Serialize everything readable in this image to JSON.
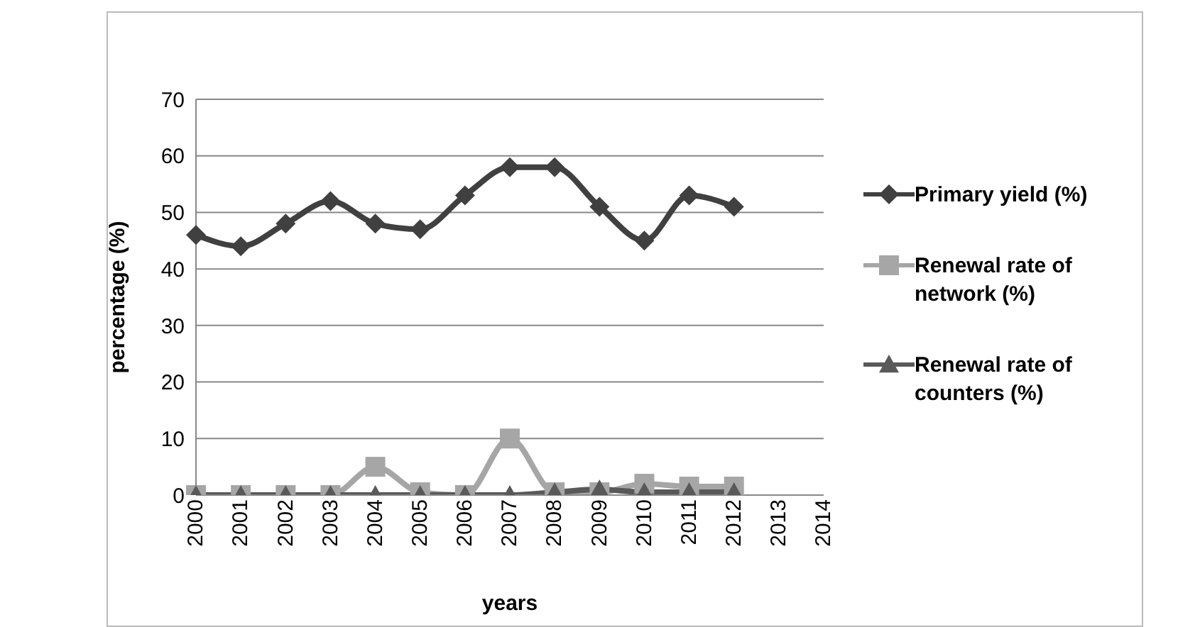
{
  "chart_data": {
    "type": "line",
    "xlabel": "years",
    "ylabel": "percentage (%)",
    "categories": [
      "2000",
      "2001",
      "2002",
      "2003",
      "2004",
      "2005",
      "2006",
      "2007",
      "2008",
      "2009",
      "2010",
      "2011",
      "2012",
      "2013",
      "2014"
    ],
    "series": [
      {
        "name": "Primary yield (%)",
        "color": "#404040",
        "marker": "diamond",
        "values": [
          46,
          44,
          48,
          52,
          48,
          47,
          53,
          58,
          58,
          51,
          45,
          53,
          51,
          null,
          null
        ]
      },
      {
        "name": "Renewal rate of network (%)",
        "color": "#a6a6a6",
        "marker": "square",
        "values": [
          0,
          0,
          0,
          0,
          5,
          0.5,
          0,
          10,
          0.5,
          0.5,
          2,
          1.5,
          1.5,
          null,
          null
        ]
      },
      {
        "name": "Renewal rate of counters (%)",
        "color": "#595959",
        "marker": "triangle",
        "values": [
          0,
          0,
          0,
          0,
          0,
          0,
          0,
          0,
          0.5,
          1,
          0.5,
          0.5,
          0.5,
          null,
          null
        ]
      }
    ],
    "ylim": [
      0,
      70
    ],
    "yticks": [
      0,
      10,
      20,
      30,
      40,
      50,
      60,
      70
    ],
    "grid": "y",
    "legend": "right"
  }
}
